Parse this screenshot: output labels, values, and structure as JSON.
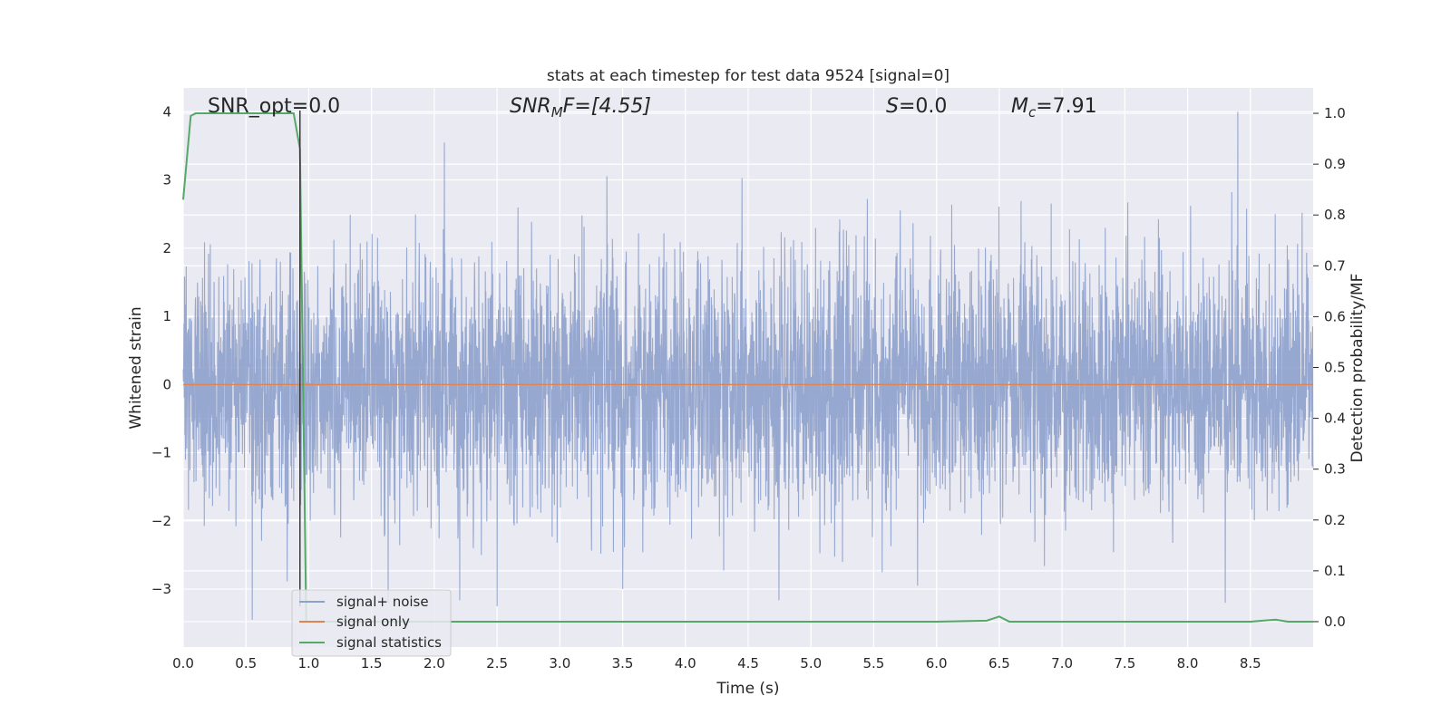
{
  "chart_data": {
    "type": "line",
    "title": "stats at each timestep for test data 9524 [signal=0]",
    "xlabel": "Time (s)",
    "ylabel_left": "Whitened strain",
    "ylabel_right": "Detection probability/MF",
    "xlim": [
      0.0,
      9.0
    ],
    "ylim_left": [
      -3.85,
      4.35
    ],
    "ylim_right": [
      -0.05,
      1.05
    ],
    "x_ticks": [
      "0.0",
      "0.5",
      "1.0",
      "1.5",
      "2.0",
      "2.5",
      "3.0",
      "3.5",
      "4.0",
      "4.5",
      "5.0",
      "5.5",
      "6.0",
      "6.5",
      "7.0",
      "7.5",
      "8.0",
      "8.5"
    ],
    "y_ticks_left": [
      "−3",
      "−2",
      "−1",
      "0",
      "1",
      "2",
      "3",
      "4"
    ],
    "y_ticks_right": [
      "0.0",
      "0.1",
      "0.2",
      "0.3",
      "0.4",
      "0.5",
      "0.6",
      "0.7",
      "0.8",
      "0.9",
      "1.0"
    ],
    "grid": true,
    "legend_position": "lower-left",
    "annotations": {
      "snr_opt": "SNR_opt=0.0",
      "snr_mf_main": "SNR",
      "snr_mf_sub": "M",
      "snr_mf_rest": "F=[4.55]",
      "s_main": "S",
      "s_rest": "=0.0",
      "mc_main": "M",
      "mc_sub": "c",
      "mc_rest": "=7.91"
    },
    "vertical_marker_x": 0.93,
    "series": [
      {
        "name": "signal+ noise",
        "color": "#8ea1cc",
        "axis": "left",
        "description": "whitened strain noise, roughly Gaussian with std about 0.95",
        "notable_peaks": [
          {
            "x": 0.55,
            "y": -3.45
          },
          {
            "x": 2.08,
            "y": 3.55
          },
          {
            "x": 2.5,
            "y": -3.25
          },
          {
            "x": 8.4,
            "y": 4.0
          },
          {
            "x": 8.3,
            "y": -3.2
          },
          {
            "x": 5.85,
            "y": -2.95
          },
          {
            "x": 3.5,
            "y": -3.0
          }
        ]
      },
      {
        "name": "signal only",
        "color": "#dd8452",
        "axis": "left",
        "x": [
          0.0,
          9.0
        ],
        "y": [
          0.0,
          0.0
        ]
      },
      {
        "name": "signal statistics",
        "color": "#55a868",
        "axis": "right",
        "x": [
          0.0,
          0.06,
          0.1,
          0.15,
          0.5,
          0.88,
          0.93,
          0.98,
          1.02,
          1.1,
          2.0,
          3.0,
          4.0,
          5.0,
          6.0,
          6.4,
          6.5,
          6.58,
          6.7,
          7.0,
          8.0,
          8.5,
          8.7,
          8.8,
          9.0
        ],
        "y": [
          0.83,
          0.995,
          1.0,
          1.0,
          1.0,
          1.0,
          0.93,
          0.0,
          0.0,
          0.0,
          0.0,
          0.0,
          0.0,
          0.0,
          0.0,
          0.002,
          0.01,
          0.0,
          0.0,
          0.0,
          0.0,
          0.0,
          0.004,
          0.0,
          0.0
        ]
      }
    ]
  }
}
